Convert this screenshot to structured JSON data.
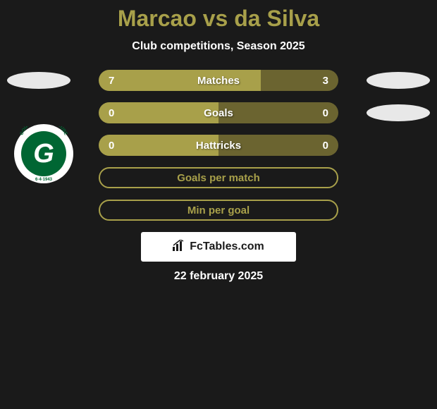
{
  "header": {
    "title": "Marcao vs da Silva",
    "subtitle": "Club competitions, Season 2025"
  },
  "stats": {
    "matches": {
      "label": "Matches",
      "left_value": "7",
      "right_value": "3",
      "left_width": 230,
      "right_width": 110,
      "left_color": "#a8a04a",
      "right_color": "#6b6430",
      "total_width": 340
    },
    "goals": {
      "label": "Goals",
      "left_value": "0",
      "right_value": "0",
      "left_width": 170,
      "right_width": 170,
      "left_color": "#a8a04a",
      "right_color": "#6b6430",
      "total_width": 340
    },
    "hattricks": {
      "label": "Hattricks",
      "left_value": "0",
      "right_value": "0",
      "left_width": 170,
      "right_width": 170,
      "left_color": "#a8a04a",
      "right_color": "#6b6430",
      "total_width": 340
    },
    "goals_per_match": {
      "label": "Goals per match",
      "border_color": "#a8a04a",
      "text_color": "#a8a04a"
    },
    "min_per_goal": {
      "label": "Min per goal",
      "border_color": "#a8a04a",
      "text_color": "#a8a04a"
    }
  },
  "club": {
    "name": "GOIAS ESPORTE CLUBE",
    "date": "6·4·1943",
    "letter": "G",
    "bg_color": "#ffffff",
    "inner_color": "#006633"
  },
  "footer": {
    "brand": "FcTables.com",
    "date": "22 february 2025"
  },
  "colors": {
    "background": "#1a1a1a",
    "primary": "#a8a04a",
    "secondary": "#6b6430",
    "text_white": "#ffffff"
  }
}
